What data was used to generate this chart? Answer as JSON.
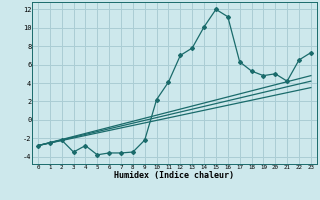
{
  "xlabel": "Humidex (Indice chaleur)",
  "bg_color": "#cde8ec",
  "grid_color": "#aacdd4",
  "line_color": "#1a6b6b",
  "xlim": [
    -0.5,
    23.5
  ],
  "ylim": [
    -4.8,
    12.8
  ],
  "xticks": [
    0,
    1,
    2,
    3,
    4,
    5,
    6,
    7,
    8,
    9,
    10,
    11,
    12,
    13,
    14,
    15,
    16,
    17,
    18,
    19,
    20,
    21,
    22,
    23
  ],
  "yticks": [
    -4,
    -2,
    0,
    2,
    4,
    6,
    8,
    10,
    12
  ],
  "line1_x": [
    0,
    1,
    2,
    3,
    4,
    5,
    6,
    7,
    8,
    9,
    10,
    11,
    12,
    13,
    14,
    15,
    16,
    17,
    18,
    19,
    20,
    21,
    22,
    23
  ],
  "line1_y": [
    -2.8,
    -2.5,
    -2.2,
    -3.5,
    -2.8,
    -3.8,
    -3.6,
    -3.6,
    -3.5,
    -2.2,
    2.2,
    4.1,
    7.0,
    7.8,
    10.1,
    12.0,
    11.2,
    6.3,
    5.3,
    4.8,
    5.0,
    4.2,
    6.5,
    7.3
  ],
  "line2_x": [
    0,
    23
  ],
  "line2_y": [
    -2.8,
    4.8
  ],
  "line3_x": [
    0,
    23
  ],
  "line3_y": [
    -2.8,
    4.2
  ],
  "line4_x": [
    0,
    23
  ],
  "line4_y": [
    -2.8,
    3.5
  ]
}
